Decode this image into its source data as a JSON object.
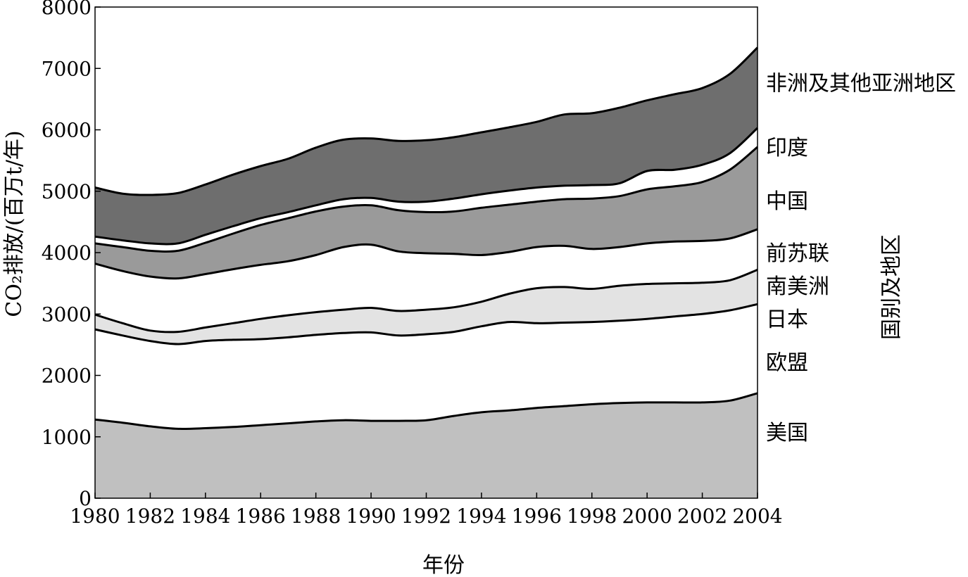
{
  "chart_data": {
    "type": "area",
    "stacked": true,
    "xlabel": "年份",
    "ylabel": "CO₂排放/(百万t/年)",
    "legend_title": "国别及地区",
    "legend_placement": "right",
    "xlim": [
      1980,
      2004
    ],
    "ylim": [
      0,
      8000
    ],
    "grid": false,
    "x_ticks": [
      "1980",
      "1982",
      "1984",
      "1986",
      "1988",
      "1990",
      "1992",
      "1994",
      "1996",
      "1998",
      "2000",
      "2002",
      "2004"
    ],
    "y_ticks": [
      "0",
      "1000",
      "2000",
      "3000",
      "4000",
      "5000",
      "6000",
      "7000",
      "8000"
    ],
    "x": [
      1980,
      1981,
      1982,
      1983,
      1984,
      1985,
      1986,
      1987,
      1988,
      1989,
      1990,
      1991,
      1992,
      1993,
      1994,
      1995,
      1996,
      1997,
      1998,
      1999,
      2000,
      2001,
      2002,
      2003,
      2004
    ],
    "cumulative_tops": [
      {
        "name": "美国",
        "color": "#c0c0c0",
        "values": [
          1280,
          1230,
          1170,
          1130,
          1140,
          1160,
          1190,
          1220,
          1250,
          1270,
          1260,
          1260,
          1270,
          1340,
          1400,
          1430,
          1470,
          1500,
          1530,
          1550,
          1560,
          1560,
          1560,
          1590,
          1710
        ]
      },
      {
        "name": "欧盟",
        "color": "#ffffff",
        "values": [
          2750,
          2650,
          2560,
          2510,
          2560,
          2580,
          2590,
          2620,
          2660,
          2690,
          2700,
          2650,
          2670,
          2710,
          2800,
          2870,
          2850,
          2860,
          2870,
          2890,
          2920,
          2960,
          3000,
          3060,
          3160
        ]
      },
      {
        "name": "日本",
        "color": "#e3e3e3",
        "values": [
          2990,
          2850,
          2730,
          2710,
          2780,
          2850,
          2920,
          2980,
          3030,
          3070,
          3100,
          3050,
          3070,
          3110,
          3200,
          3330,
          3420,
          3440,
          3410,
          3460,
          3490,
          3500,
          3510,
          3550,
          3720
        ]
      },
      {
        "name": "南美洲",
        "color": "#ffffff",
        "values": [
          3820,
          3700,
          3610,
          3580,
          3650,
          3730,
          3800,
          3860,
          3960,
          4090,
          4130,
          4020,
          3990,
          3980,
          3960,
          4010,
          4090,
          4110,
          4060,
          4090,
          4150,
          4180,
          4190,
          4230,
          4380
        ]
      },
      {
        "name": "前苏联",
        "color": "#9a9a9a",
        "values": [
          4150,
          4090,
          4030,
          4030,
          4160,
          4310,
          4450,
          4560,
          4670,
          4750,
          4770,
          4690,
          4660,
          4670,
          4730,
          4780,
          4830,
          4870,
          4880,
          4920,
          5030,
          5080,
          5150,
          5350,
          5720
        ]
      },
      {
        "name": "中国",
        "color": "#ffffff",
        "values": [
          4260,
          4200,
          4150,
          4150,
          4290,
          4430,
          4560,
          4660,
          4770,
          4870,
          4890,
          4830,
          4830,
          4880,
          4950,
          5010,
          5060,
          5090,
          5100,
          5130,
          5330,
          5350,
          5430,
          5620,
          6030
        ]
      },
      {
        "name": "印度",
        "color": "#6e6e6e",
        "values": [
          5060,
          4960,
          4940,
          4970,
          5110,
          5270,
          5410,
          5530,
          5710,
          5840,
          5860,
          5820,
          5830,
          5880,
          5960,
          6040,
          6130,
          6250,
          6270,
          6360,
          6480,
          6580,
          6680,
          6910,
          7340
        ]
      },
      {
        "name": "非洲及其他亚洲地区",
        "color": "#6e6e6e",
        "values": [
          5060,
          4960,
          4940,
          4970,
          5110,
          5270,
          5410,
          5530,
          5710,
          5840,
          5860,
          5820,
          5830,
          5880,
          5960,
          6040,
          6130,
          6250,
          6270,
          6360,
          6480,
          6580,
          6680,
          6910,
          7340
        ]
      }
    ]
  },
  "region_labels": [
    {
      "text": "非洲及其他亚洲地区",
      "at_value": 6770
    },
    {
      "text": "印度",
      "at_value": 5720
    },
    {
      "text": "中国",
      "at_value": 4850
    },
    {
      "text": "前苏联",
      "at_value": 4000
    },
    {
      "text": "南美洲",
      "at_value": 3460
    },
    {
      "text": "日本",
      "at_value": 2920
    },
    {
      "text": "欧盟",
      "at_value": 2220
    },
    {
      "text": "美国",
      "at_value": 1080
    }
  ]
}
